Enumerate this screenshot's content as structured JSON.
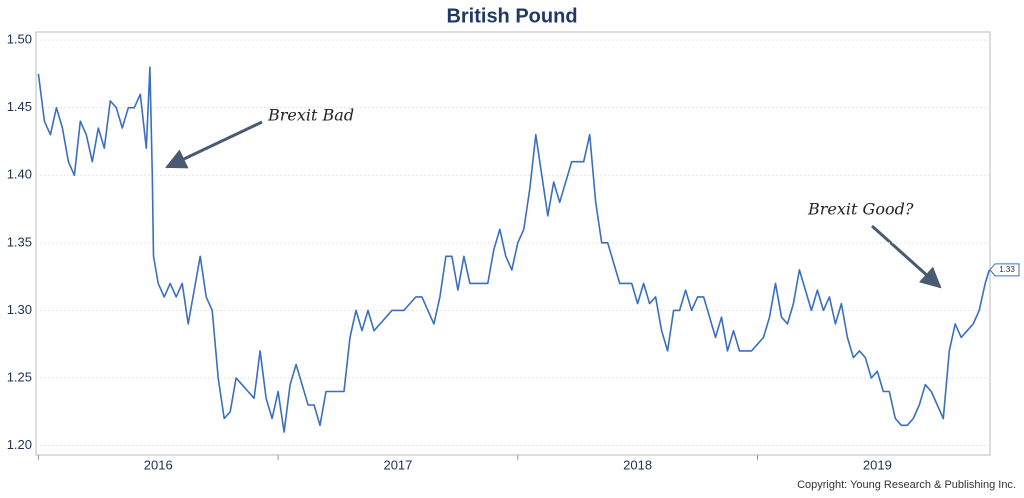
{
  "chart_data": {
    "type": "line",
    "title": "British Pound",
    "x": [
      2016,
      2016.025,
      2016.05,
      2016.075,
      2016.1,
      2016.125,
      2016.15,
      2016.175,
      2016.2,
      2016.225,
      2016.25,
      2016.275,
      2016.3,
      2016.325,
      2016.35,
      2016.375,
      2016.4,
      2016.425,
      2016.45,
      2016.465,
      2016.475,
      2016.48,
      2016.5,
      2016.525,
      2016.55,
      2016.575,
      2016.6,
      2016.625,
      2016.65,
      2016.675,
      2016.7,
      2016.725,
      2016.75,
      2016.775,
      2016.8,
      2016.825,
      2016.85,
      2016.875,
      2016.9,
      2016.925,
      2016.95,
      2016.975,
      2017,
      2017.025,
      2017.05,
      2017.075,
      2017.1,
      2017.125,
      2017.15,
      2017.175,
      2017.2,
      2017.225,
      2017.25,
      2017.275,
      2017.3,
      2017.325,
      2017.35,
      2017.375,
      2017.4,
      2017.425,
      2017.45,
      2017.475,
      2017.5,
      2017.525,
      2017.55,
      2017.575,
      2017.6,
      2017.625,
      2017.65,
      2017.675,
      2017.7,
      2017.725,
      2017.75,
      2017.775,
      2017.8,
      2017.825,
      2017.85,
      2017.875,
      2017.9,
      2017.925,
      2017.95,
      2017.975,
      2018,
      2018.025,
      2018.05,
      2018.075,
      2018.1,
      2018.125,
      2018.15,
      2018.175,
      2018.2,
      2018.225,
      2018.25,
      2018.275,
      2018.3,
      2018.325,
      2018.35,
      2018.375,
      2018.4,
      2018.425,
      2018.45,
      2018.475,
      2018.5,
      2018.525,
      2018.55,
      2018.575,
      2018.6,
      2018.625,
      2018.65,
      2018.675,
      2018.7,
      2018.725,
      2018.75,
      2018.775,
      2018.8,
      2018.825,
      2018.85,
      2018.875,
      2018.9,
      2018.925,
      2018.95,
      2018.975,
      2019,
      2019.025,
      2019.05,
      2019.075,
      2019.1,
      2019.125,
      2019.15,
      2019.175,
      2019.2,
      2019.225,
      2019.25,
      2019.275,
      2019.3,
      2019.325,
      2019.35,
      2019.375,
      2019.4,
      2019.425,
      2019.45,
      2019.475,
      2019.5,
      2019.525,
      2019.55,
      2019.575,
      2019.6,
      2019.625,
      2019.65,
      2019.675,
      2019.7,
      2019.725,
      2019.75,
      2019.775,
      2019.8,
      2019.825,
      2019.85,
      2019.875,
      2019.9,
      2019.925,
      2019.95,
      2019.967
    ],
    "values": [
      1.475,
      1.44,
      1.43,
      1.45,
      1.435,
      1.41,
      1.4,
      1.44,
      1.43,
      1.41,
      1.435,
      1.42,
      1.455,
      1.45,
      1.435,
      1.45,
      1.45,
      1.46,
      1.42,
      1.48,
      1.4,
      1.34,
      1.32,
      1.31,
      1.32,
      1.31,
      1.32,
      1.29,
      1.315,
      1.34,
      1.31,
      1.3,
      1.25,
      1.22,
      1.225,
      1.25,
      1.245,
      1.24,
      1.235,
      1.27,
      1.235,
      1.22,
      1.24,
      1.21,
      1.245,
      1.26,
      1.245,
      1.23,
      1.23,
      1.215,
      1.24,
      1.24,
      1.24,
      1.24,
      1.28,
      1.3,
      1.285,
      1.3,
      1.285,
      1.29,
      1.295,
      1.3,
      1.3,
      1.3,
      1.305,
      1.31,
      1.31,
      1.3,
      1.29,
      1.31,
      1.34,
      1.34,
      1.315,
      1.34,
      1.32,
      1.32,
      1.32,
      1.32,
      1.345,
      1.36,
      1.34,
      1.33,
      1.35,
      1.36,
      1.39,
      1.43,
      1.4,
      1.37,
      1.395,
      1.38,
      1.395,
      1.41,
      1.41,
      1.41,
      1.43,
      1.38,
      1.35,
      1.35,
      1.335,
      1.32,
      1.32,
      1.32,
      1.305,
      1.32,
      1.305,
      1.31,
      1.285,
      1.27,
      1.3,
      1.3,
      1.315,
      1.3,
      1.31,
      1.31,
      1.295,
      1.28,
      1.295,
      1.27,
      1.285,
      1.27,
      1.27,
      1.27,
      1.275,
      1.28,
      1.295,
      1.32,
      1.295,
      1.29,
      1.305,
      1.33,
      1.315,
      1.3,
      1.315,
      1.3,
      1.31,
      1.29,
      1.305,
      1.28,
      1.265,
      1.27,
      1.265,
      1.25,
      1.255,
      1.24,
      1.24,
      1.22,
      1.215,
      1.215,
      1.22,
      1.23,
      1.245,
      1.24,
      1.23,
      1.22,
      1.27,
      1.29,
      1.28,
      1.285,
      1.29,
      1.3,
      1.32,
      1.33
    ],
    "color": "#3a6fc0",
    "xlim": [
      2015.99,
      2019.97
    ],
    "xticks": [
      2016,
      2017,
      2018,
      2019
    ],
    "ylim": [
      1.193,
      1.506
    ],
    "yticks": [
      {
        "value": 1.5,
        "label": "1.50"
      },
      1.45,
      {
        "value": 1.4,
        "label": "1.40"
      },
      1.35,
      {
        "value": 1.3,
        "label": "1.30"
      },
      1.25,
      {
        "value": 1.2,
        "label": "1.20"
      }
    ],
    "grid": true,
    "end_label": 1.33,
    "annotations": [
      "Brexit Bad",
      "Brexit Good?"
    ],
    "copyright": "Copyright: Young Research & Publishing Inc."
  }
}
